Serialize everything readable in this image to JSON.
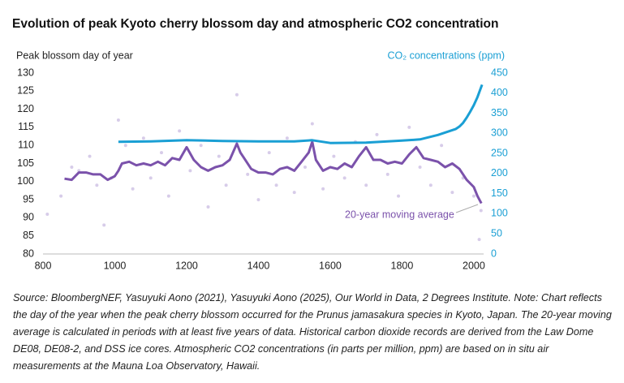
{
  "chart_data": {
    "type": "line",
    "title": "Evolution of peak Kyoto cherry blossom day and atmospheric CO2 concentration",
    "y_label": "Peak blossom day of year",
    "y2_label": "CO₂ concentrations (ppm)",
    "annotation": "20-year moving average",
    "xlim": [
      800,
      2025
    ],
    "xticks": [
      800,
      1000,
      1200,
      1400,
      1600,
      1800,
      2000
    ],
    "ylim": [
      80,
      130
    ],
    "yticks": [
      80,
      85,
      90,
      95,
      100,
      105,
      110,
      115,
      120,
      125,
      130
    ],
    "y2lim": [
      0,
      450
    ],
    "y2ticks": [
      0,
      50,
      100,
      150,
      200,
      250,
      300,
      350,
      400,
      450
    ],
    "series": [
      {
        "kind": "scatter",
        "color": "#cdbfe4",
        "x": [
          812,
          850,
          880,
          900,
          930,
          950,
          970,
          990,
          1010,
          1030,
          1050,
          1080,
          1100,
          1130,
          1150,
          1180,
          1210,
          1240,
          1260,
          1290,
          1310,
          1340,
          1370,
          1400,
          1430,
          1450,
          1480,
          1500,
          1530,
          1550,
          1580,
          1610,
          1640,
          1670,
          1700,
          1730,
          1760,
          1790,
          1820,
          1850,
          1880,
          1910,
          1940,
          1970,
          2000,
          2015,
          2020
        ],
        "values": [
          91,
          96,
          104,
          103,
          107,
          99,
          88,
          101,
          117,
          110,
          98,
          112,
          101,
          108,
          96,
          114,
          103,
          110,
          93,
          107,
          99,
          124,
          102,
          95,
          108,
          99,
          112,
          97,
          104,
          116,
          98,
          107,
          101,
          111,
          99,
          113,
          102,
          96,
          115,
          104,
          99,
          110,
          97,
          101,
          96,
          84,
          92
        ]
      },
      {
        "name": "20-year moving average",
        "kind": "line",
        "color": "#7b52ab",
        "x": [
          860,
          880,
          900,
          920,
          940,
          960,
          980,
          1000,
          1010,
          1020,
          1040,
          1060,
          1080,
          1100,
          1120,
          1140,
          1160,
          1180,
          1200,
          1220,
          1240,
          1260,
          1280,
          1300,
          1320,
          1340,
          1350,
          1360,
          1380,
          1400,
          1420,
          1440,
          1460,
          1480,
          1500,
          1520,
          1540,
          1550,
          1560,
          1580,
          1600,
          1620,
          1640,
          1660,
          1680,
          1700,
          1720,
          1740,
          1760,
          1780,
          1800,
          1820,
          1840,
          1860,
          1880,
          1900,
          1920,
          1940,
          1960,
          1980,
          2000,
          2010,
          2021
        ],
        "values": [
          100.8,
          100.5,
          102.5,
          102.5,
          102,
          102,
          100.5,
          101.5,
          103,
          105,
          105.5,
          104.5,
          105,
          104.5,
          105.5,
          104.5,
          106.5,
          106,
          109.5,
          106,
          104,
          103,
          104,
          104.5,
          106,
          110.5,
          108,
          106.5,
          103.5,
          102.5,
          102.5,
          102,
          103.5,
          104,
          103,
          105.5,
          108,
          111,
          106,
          103,
          104,
          103.5,
          105,
          104,
          107,
          109.5,
          106,
          106,
          105,
          105.5,
          105,
          107.5,
          109.5,
          106.5,
          106,
          105.5,
          104,
          105,
          103.5,
          100.5,
          98.5,
          96,
          94
        ]
      },
      {
        "name": "CO₂ concentrations (ppm)",
        "kind": "line",
        "axis": "y2",
        "color": "#1a9fd4",
        "x": [
          1010,
          1100,
          1200,
          1300,
          1400,
          1500,
          1550,
          1600,
          1700,
          1800,
          1850,
          1900,
          1950,
          1960,
          1970,
          1980,
          1990,
          2000,
          2010,
          2020,
          2023
        ],
        "values": [
          279,
          280,
          283,
          281,
          280,
          280,
          283,
          276,
          277,
          282,
          285,
          296,
          311,
          317,
          326,
          339,
          354,
          370,
          390,
          414,
          421
        ]
      }
    ],
    "source": "Source: BloombergNEF, Yasuyuki Aono (2021), Yasuyuki Aono (2025), Our World in Data, 2 Degrees Institute. Note: Chart reflects the day of the year when the peak cherry blossom occurred for the Prunus jamasakura species in Kyoto, Japan. The 20-year moving average is calculated in periods with at least five years of data. Historical carbon dioxide records are derived from the Law Dome DE08, DE08-2, and DSS ice cores. Atmospheric CO2 concentrations (in parts per million, ppm) are based on in situ air measurements at the Mauna Loa Observatory, Hawaii."
  }
}
